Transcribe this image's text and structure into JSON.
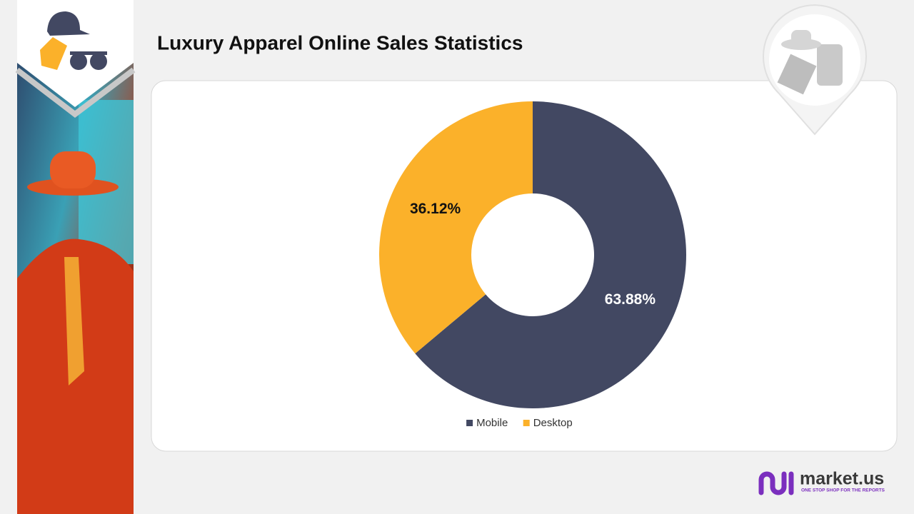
{
  "chart_data": {
    "type": "donut",
    "title": "Luxury Apparel Online Sales Statistics",
    "categories": [
      "Mobile",
      "Desktop"
    ],
    "values": [
      63.88,
      36.12
    ],
    "value_labels": [
      "63.88%",
      "36.12%"
    ],
    "colors": [
      "#424862",
      "#fbb12a"
    ],
    "legend": "bottom"
  },
  "brand": {
    "name": "market.us",
    "tagline": "ONE STOP SHOP FOR THE REPORTS"
  }
}
